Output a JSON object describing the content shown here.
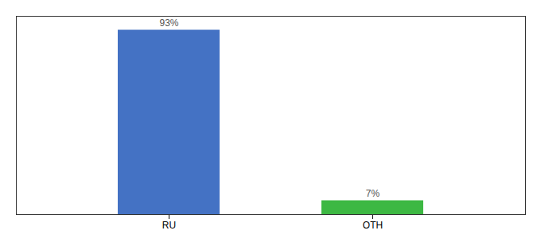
{
  "chart_data": {
    "type": "bar",
    "categories": [
      "RU",
      "OTH"
    ],
    "values": [
      93,
      7
    ],
    "value_labels": [
      "93%",
      "7%"
    ],
    "colors": [
      "#4472c4",
      "#3db843"
    ],
    "ylim": [
      0,
      100
    ],
    "data_labels": true,
    "tick_labels": "x"
  }
}
